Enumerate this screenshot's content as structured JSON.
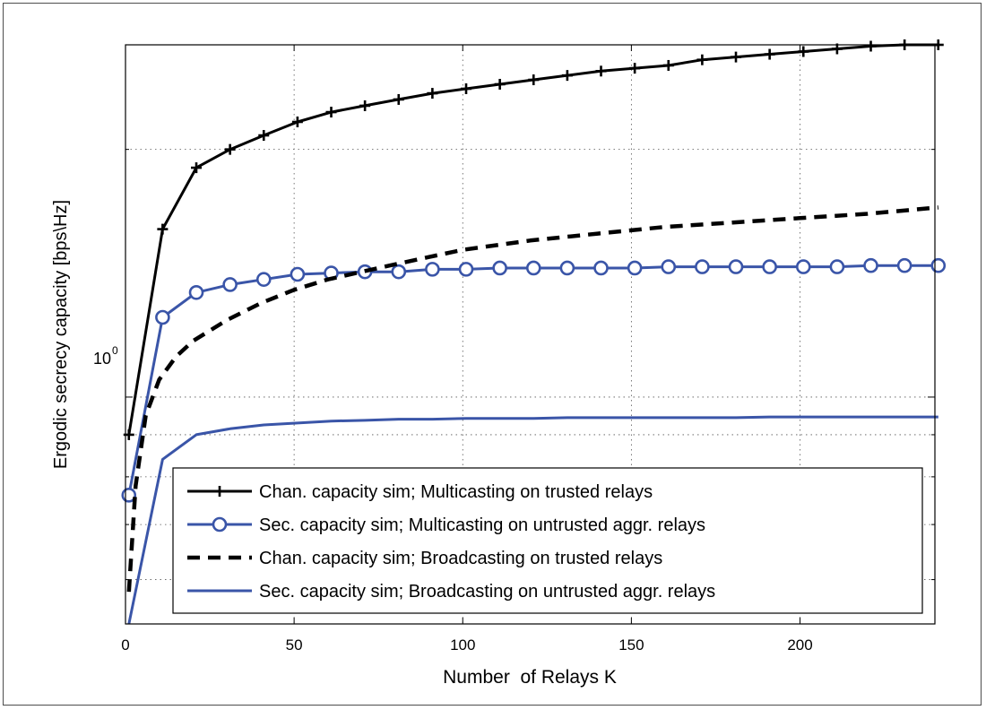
{
  "chart_data": {
    "type": "line",
    "title": "",
    "xlabel": "Number  of Relays K",
    "ylabel": "Ergodic secrecy capacity [bps\\Hz]",
    "x_scale": "linear",
    "y_scale": "log",
    "xlim": [
      0,
      240
    ],
    "ylim": [
      0.53,
      2.68
    ],
    "x_ticks": [
      "0",
      "50",
      "100",
      "150",
      "200"
    ],
    "y_tick_base": "10",
    "y_tick_exp": "0",
    "grid": true,
    "legend_position": "bottom-right",
    "series": [
      {
        "name": "Chan. capacity sim; Multicasting on trusted relays",
        "color": "#000000",
        "style": "solid",
        "marker": "plus",
        "x": [
          1,
          11,
          21,
          31,
          41,
          51,
          61,
          71,
          81,
          91,
          101,
          111,
          121,
          131,
          141,
          151,
          161,
          171,
          181,
          191,
          201,
          211,
          221,
          231,
          241
        ],
        "y": [
          0.9,
          1.6,
          1.9,
          2.0,
          2.08,
          2.16,
          2.22,
          2.26,
          2.3,
          2.34,
          2.37,
          2.4,
          2.43,
          2.46,
          2.49,
          2.51,
          2.53,
          2.57,
          2.59,
          2.61,
          2.63,
          2.65,
          2.67,
          2.68,
          2.68
        ]
      },
      {
        "name": "Sec. capacity sim; Multicasting on untrusted aggr. relays",
        "color": "#3a55a8",
        "style": "solid",
        "marker": "circle",
        "x": [
          1,
          11,
          21,
          31,
          41,
          51,
          61,
          71,
          81,
          91,
          101,
          111,
          121,
          131,
          141,
          151,
          161,
          171,
          181,
          191,
          201,
          211,
          221,
          231,
          241
        ],
        "y": [
          0.76,
          1.25,
          1.34,
          1.37,
          1.39,
          1.41,
          1.415,
          1.42,
          1.42,
          1.43,
          1.43,
          1.435,
          1.435,
          1.435,
          1.435,
          1.435,
          1.44,
          1.44,
          1.44,
          1.44,
          1.44,
          1.44,
          1.445,
          1.445,
          1.445
        ]
      },
      {
        "name": "Chan. capacity sim; Broadcasting on trusted relays",
        "color": "#000000",
        "style": "dashed",
        "marker": "none",
        "x": [
          1,
          3,
          6,
          10,
          15,
          20,
          30,
          40,
          50,
          60,
          70,
          80,
          90,
          100,
          120,
          140,
          160,
          180,
          200,
          220,
          241
        ],
        "y": [
          0.58,
          0.78,
          0.95,
          1.05,
          1.12,
          1.17,
          1.24,
          1.3,
          1.35,
          1.39,
          1.42,
          1.45,
          1.48,
          1.51,
          1.55,
          1.58,
          1.61,
          1.63,
          1.65,
          1.67,
          1.7
        ]
      },
      {
        "name": "Sec. capacity sim; Broadcasting on untrusted aggr. relays",
        "color": "#3a55a8",
        "style": "solid",
        "marker": "none",
        "x": [
          1,
          11,
          21,
          31,
          41,
          51,
          61,
          71,
          81,
          91,
          101,
          111,
          121,
          131,
          141,
          151,
          161,
          171,
          181,
          191,
          201,
          211,
          221,
          231,
          241
        ],
        "y": [
          0.53,
          0.84,
          0.9,
          0.915,
          0.925,
          0.93,
          0.935,
          0.937,
          0.94,
          0.94,
          0.942,
          0.942,
          0.942,
          0.944,
          0.944,
          0.944,
          0.944,
          0.944,
          0.944,
          0.946,
          0.946,
          0.946,
          0.946,
          0.946,
          0.946
        ]
      }
    ]
  }
}
